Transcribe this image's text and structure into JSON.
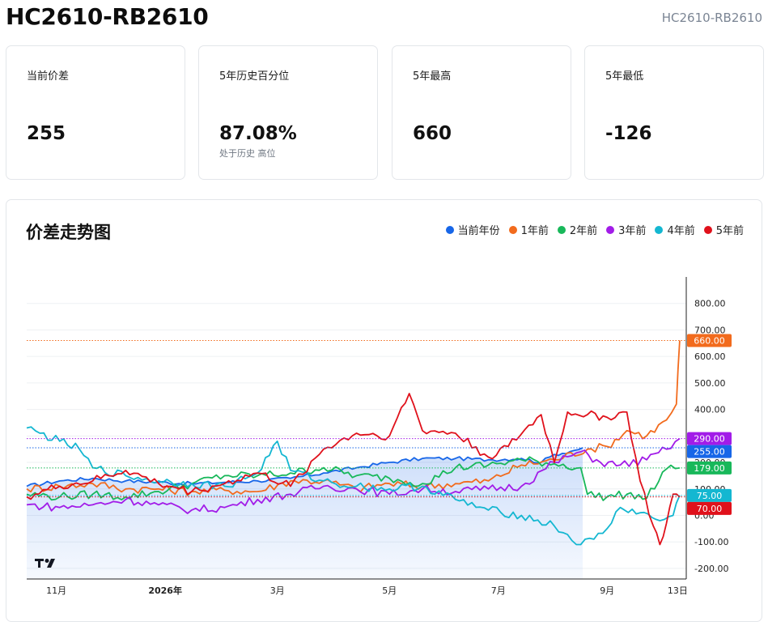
{
  "header": {
    "title": "HC2610-RB2610",
    "subtitle": "HC2610-RB2610"
  },
  "stats": [
    {
      "label": "当前价差",
      "value": "255",
      "note": ""
    },
    {
      "label": "5年历史百分位",
      "value": "87.08%",
      "note": "处于历史 高位"
    },
    {
      "label": "5年最高",
      "value": "660",
      "note": ""
    },
    {
      "label": "5年最低",
      "value": "-126",
      "note": ""
    }
  ],
  "chart_title": "价差走势图",
  "chart_data": {
    "type": "line",
    "title": "价差走势图",
    "legend_position": "top-right",
    "grid": true,
    "ylim": [
      -240,
      900
    ],
    "y_ticks": [
      "800.00",
      "700.00",
      "600.00",
      "500.00",
      "400.00",
      "300.00",
      "200.00",
      "100.00",
      "0.00",
      "-100.00",
      "-200.00"
    ],
    "y_tick_values": [
      800,
      700,
      600,
      500,
      400,
      300,
      200,
      100,
      0,
      -100,
      -200
    ],
    "x_ticks": [
      {
        "label": "11月",
        "pos": 0.045,
        "bold": false
      },
      {
        "label": "2026年",
        "pos": 0.21,
        "bold": true
      },
      {
        "label": "3月",
        "pos": 0.38,
        "bold": false
      },
      {
        "label": "5月",
        "pos": 0.55,
        "bold": false
      },
      {
        "label": "7月",
        "pos": 0.715,
        "bold": false
      },
      {
        "label": "9月",
        "pos": 0.88,
        "bold": false
      },
      {
        "label": "13日",
        "pos": 0.987,
        "bold": false
      }
    ],
    "reference_lines": [
      {
        "value": 660,
        "label": "660.00",
        "color": "#f26b1d"
      },
      {
        "value": 290,
        "label": "290.00",
        "color": "#a21ce8"
      },
      {
        "value": 255,
        "label": "255.00",
        "color": "#1766e8"
      },
      {
        "value": 179,
        "label": "179.00",
        "color": "#18b85a"
      },
      {
        "value": 75,
        "label": "75.00",
        "color": "#14b7d1"
      },
      {
        "value": 70,
        "label": "70.00",
        "color": "#e0111b"
      }
    ],
    "series": [
      {
        "name": "当前年份",
        "color": "#1766e8",
        "area": true,
        "points": [
          [
            0,
            110
          ],
          [
            0.05,
            130
          ],
          [
            0.1,
            140
          ],
          [
            0.15,
            130
          ],
          [
            0.2,
            125
          ],
          [
            0.25,
            120
          ],
          [
            0.3,
            125
          ],
          [
            0.35,
            130
          ],
          [
            0.4,
            140
          ],
          [
            0.45,
            160
          ],
          [
            0.5,
            180
          ],
          [
            0.55,
            200
          ],
          [
            0.6,
            215
          ],
          [
            0.65,
            215
          ],
          [
            0.7,
            210
          ],
          [
            0.75,
            215
          ],
          [
            0.78,
            200
          ],
          [
            0.8,
            230
          ],
          [
            0.83,
            245
          ],
          [
            0.843,
            255
          ]
        ]
      },
      {
        "name": "1年前",
        "color": "#f26b1d",
        "points": [
          [
            0,
            100
          ],
          [
            0.05,
            110
          ],
          [
            0.1,
            120
          ],
          [
            0.15,
            100
          ],
          [
            0.2,
            100
          ],
          [
            0.25,
            90
          ],
          [
            0.3,
            95
          ],
          [
            0.35,
            90
          ],
          [
            0.4,
            130
          ],
          [
            0.45,
            130
          ],
          [
            0.5,
            100
          ],
          [
            0.55,
            120
          ],
          [
            0.6,
            110
          ],
          [
            0.65,
            120
          ],
          [
            0.7,
            130
          ],
          [
            0.75,
            190
          ],
          [
            0.8,
            210
          ],
          [
            0.85,
            250
          ],
          [
            0.88,
            260
          ],
          [
            0.91,
            320
          ],
          [
            0.94,
            300
          ],
          [
            0.97,
            360
          ],
          [
            0.985,
            420
          ],
          [
            0.99,
            660
          ]
        ]
      },
      {
        "name": "2年前",
        "color": "#18b85a",
        "points": [
          [
            0,
            80
          ],
          [
            0.05,
            70
          ],
          [
            0.1,
            80
          ],
          [
            0.15,
            70
          ],
          [
            0.2,
            90
          ],
          [
            0.25,
            120
          ],
          [
            0.3,
            150
          ],
          [
            0.35,
            150
          ],
          [
            0.4,
            160
          ],
          [
            0.45,
            180
          ],
          [
            0.5,
            150
          ],
          [
            0.55,
            140
          ],
          [
            0.6,
            120
          ],
          [
            0.65,
            180
          ],
          [
            0.7,
            190
          ],
          [
            0.75,
            210
          ],
          [
            0.8,
            195
          ],
          [
            0.84,
            180
          ],
          [
            0.85,
            80
          ],
          [
            0.88,
            70
          ],
          [
            0.91,
            80
          ],
          [
            0.94,
            65
          ],
          [
            0.97,
            175
          ],
          [
            0.99,
            179
          ]
        ]
      },
      {
        "name": "3年前",
        "color": "#a21ce8",
        "points": [
          [
            0,
            40
          ],
          [
            0.05,
            30
          ],
          [
            0.1,
            40
          ],
          [
            0.15,
            60
          ],
          [
            0.2,
            40
          ],
          [
            0.25,
            20
          ],
          [
            0.3,
            30
          ],
          [
            0.35,
            60
          ],
          [
            0.4,
            80
          ],
          [
            0.45,
            110
          ],
          [
            0.5,
            100
          ],
          [
            0.55,
            80
          ],
          [
            0.6,
            100
          ],
          [
            0.65,
            90
          ],
          [
            0.7,
            100
          ],
          [
            0.75,
            110
          ],
          [
            0.8,
            200
          ],
          [
            0.84,
            240
          ],
          [
            0.87,
            200
          ],
          [
            0.9,
            190
          ],
          [
            0.94,
            210
          ],
          [
            0.97,
            250
          ],
          [
            0.99,
            290
          ]
        ]
      },
      {
        "name": "4年前",
        "color": "#14b7d1",
        "points": [
          [
            0,
            330
          ],
          [
            0.02,
            310
          ],
          [
            0.05,
            280
          ],
          [
            0.08,
            250
          ],
          [
            0.1,
            180
          ],
          [
            0.15,
            150
          ],
          [
            0.2,
            130
          ],
          [
            0.25,
            120
          ],
          [
            0.3,
            110
          ],
          [
            0.35,
            160
          ],
          [
            0.38,
            280
          ],
          [
            0.4,
            170
          ],
          [
            0.45,
            130
          ],
          [
            0.5,
            110
          ],
          [
            0.55,
            100
          ],
          [
            0.6,
            110
          ],
          [
            0.65,
            60
          ],
          [
            0.7,
            20
          ],
          [
            0.75,
            0
          ],
          [
            0.8,
            -40
          ],
          [
            0.84,
            -110
          ],
          [
            0.86,
            -90
          ],
          [
            0.88,
            -50
          ],
          [
            0.9,
            30
          ],
          [
            0.93,
            10
          ],
          [
            0.96,
            -20
          ],
          [
            0.98,
            0
          ],
          [
            0.99,
            75
          ]
        ]
      },
      {
        "name": "5年前",
        "color": "#e0111b",
        "points": [
          [
            0,
            70
          ],
          [
            0.05,
            110
          ],
          [
            0.1,
            130
          ],
          [
            0.15,
            170
          ],
          [
            0.2,
            120
          ],
          [
            0.25,
            90
          ],
          [
            0.3,
            120
          ],
          [
            0.35,
            160
          ],
          [
            0.4,
            110
          ],
          [
            0.45,
            250
          ],
          [
            0.5,
            310
          ],
          [
            0.55,
            300
          ],
          [
            0.58,
            460
          ],
          [
            0.6,
            320
          ],
          [
            0.65,
            310
          ],
          [
            0.7,
            220
          ],
          [
            0.73,
            260
          ],
          [
            0.78,
            380
          ],
          [
            0.8,
            200
          ],
          [
            0.82,
            390
          ],
          [
            0.85,
            380
          ],
          [
            0.88,
            370
          ],
          [
            0.91,
            390
          ],
          [
            0.93,
            130
          ],
          [
            0.95,
            -40
          ],
          [
            0.96,
            -110
          ],
          [
            0.97,
            -30
          ],
          [
            0.98,
            80
          ],
          [
            0.99,
            70
          ]
        ]
      }
    ]
  }
}
